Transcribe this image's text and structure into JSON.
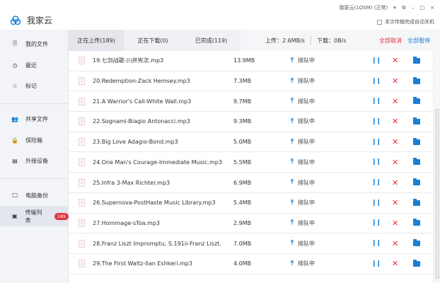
{
  "app": {
    "title": "我家云",
    "account": "我家云(1OSM) (正常)",
    "auto_shutdown": "本次传输完成自动关机"
  },
  "sidebar": {
    "items": [
      {
        "label": "我的文件",
        "icon": "file-icon"
      },
      {
        "label": "最近",
        "icon": "clock-icon"
      },
      {
        "label": "标记",
        "icon": "star-icon"
      },
      {
        "label": "共享文件",
        "icon": "users-icon"
      },
      {
        "label": "保险箱",
        "icon": "lock-icon"
      },
      {
        "label": "外接设备",
        "icon": "device-icon"
      },
      {
        "label": "电脑备份",
        "icon": "monitor-icon"
      },
      {
        "label": "传输列表",
        "icon": "transfer-icon",
        "badge": "189"
      }
    ]
  },
  "tabs": [
    {
      "label": "正在上传(189)"
    },
    {
      "label": "正在下载(0)"
    },
    {
      "label": "已完成(119)"
    }
  ],
  "speed": {
    "upload": "上传：2.6MB/s",
    "download": "下载：0B/s"
  },
  "actions": {
    "cancel_all": "全部取消",
    "pause_all": "全部暂停"
  },
  "colors": {
    "accent": "#1a7fd4",
    "danger": "#e0323c"
  },
  "files": [
    {
      "name": "19.七剑战歌-川井宪次.mp3",
      "size": "13.9MB",
      "status": "排队中"
    },
    {
      "name": "20.Redemption-Zack Hemsey.mp3",
      "size": "7.3MB",
      "status": "排队中"
    },
    {
      "name": "21.A Warrior's Call-White Wall.mp3",
      "size": "9.7MB",
      "status": "排队中"
    },
    {
      "name": "22.Sognami-Biagio Antonacci.mp3",
      "size": "9.3MB",
      "status": "排队中"
    },
    {
      "name": "23.Big Love Adagio-Bond.mp3",
      "size": "5.0MB",
      "status": "排队中"
    },
    {
      "name": "24.One Man's Courage-Immediate Music.mp3",
      "size": "5.5MB",
      "status": "排队中"
    },
    {
      "name": "25.Infra 3-Max Richter.mp3",
      "size": "6.9MB",
      "status": "排队中"
    },
    {
      "name": "26.Supernova-PostHaste Music Library.mp3",
      "size": "5.4MB",
      "status": "排队中"
    },
    {
      "name": "27.Hommage-sToa.mp3",
      "size": "2.9MB",
      "status": "排队中"
    },
    {
      "name": "28.Franz Liszt   Impromptu, S.191ii-Franz Liszt.",
      "size": "7.0MB",
      "status": "排队中"
    },
    {
      "name": "29.The First Waltz-Ilan Eshkeri.mp3",
      "size": "4.0MB",
      "status": "排队中"
    }
  ]
}
